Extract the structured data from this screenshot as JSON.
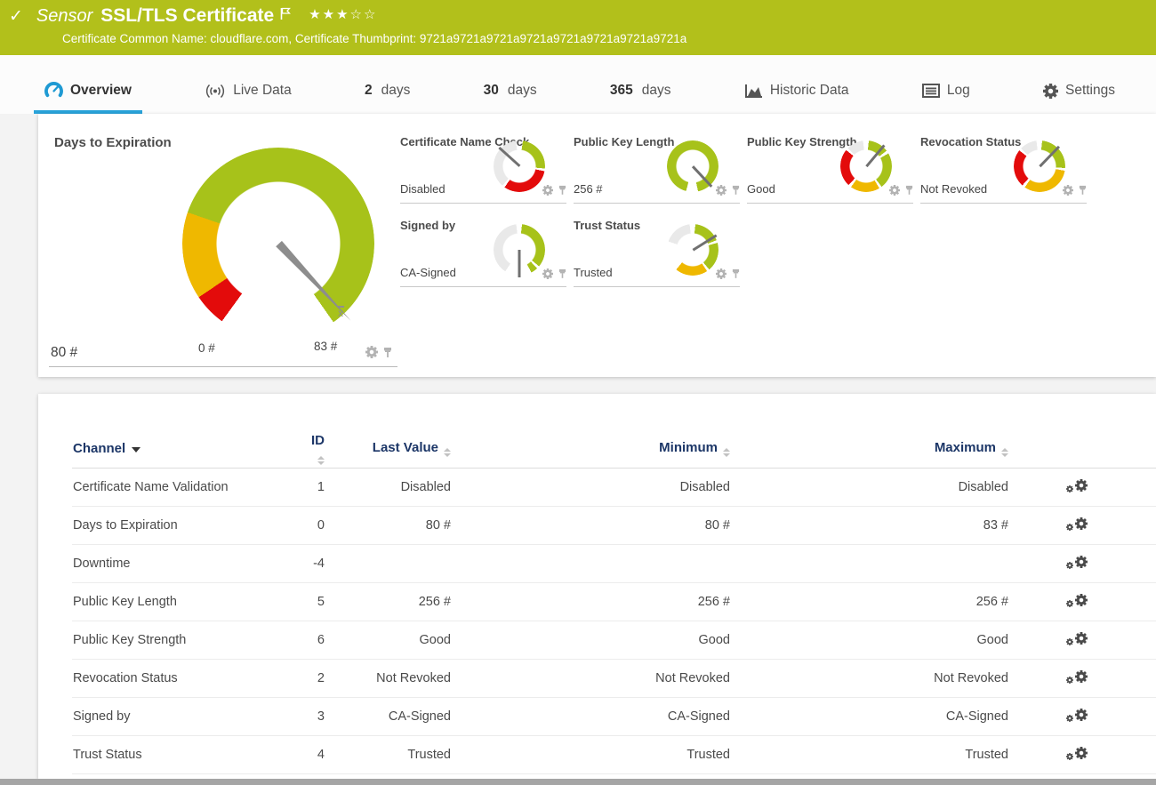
{
  "colors": {
    "header_green": "#b2c01b",
    "accent_blue": "#29a3da",
    "gauge_green": "#a7c21a",
    "gauge_yellow": "#efb800",
    "gauge_red": "#e30b0b",
    "gauge_gray": "#e9e9e9",
    "needle_gray": "#8d8d8d"
  },
  "header": {
    "status_icon": "check",
    "kind": "Sensor",
    "title": "SSL/TLS Certificate",
    "rating": {
      "filled": 3,
      "total": 5
    },
    "subtitle": "Certificate Common Name: cloudflare.com, Certificate Thumbprint: 9721a9721a9721a9721a9721a9721a9721a9721a"
  },
  "tabs": [
    {
      "id": "overview",
      "icon": "gauge-icon",
      "label": "Overview",
      "active": true
    },
    {
      "id": "live-data",
      "icon": "live-icon",
      "label": "Live Data",
      "active": false
    },
    {
      "id": "2-days",
      "num": "2",
      "label": "days",
      "active": false
    },
    {
      "id": "30-days",
      "num": "30",
      "label": "days",
      "active": false
    },
    {
      "id": "365-days",
      "num": "365",
      "label": "days",
      "active": false
    },
    {
      "id": "historic-data",
      "icon": "historic-icon",
      "label": "Historic Data",
      "active": false
    },
    {
      "id": "log",
      "icon": "log-icon",
      "label": "Log",
      "active": false
    },
    {
      "id": "settings",
      "icon": "settings-icon",
      "label": "Settings",
      "active": false
    }
  ],
  "overview": {
    "main_gauge": {
      "title": "Days to Expiration",
      "value": "80 #",
      "min_label": "0 #",
      "max_label": "83 #",
      "mean_marker": "x",
      "needle_deg": 137,
      "segments": [
        {
          "color": "gauge_green",
          "from": 0,
          "to": 145
        },
        {
          "color": "gauge_red",
          "from": 216,
          "to": 236
        },
        {
          "color": "gauge_yellow",
          "from": 236,
          "to": 289
        },
        {
          "color": "gauge_green",
          "from": 289,
          "to": 360
        }
      ]
    },
    "small_gauges": [
      {
        "title": "Certificate Name Check",
        "value": "Disabled",
        "needle_deg": 312,
        "row": 0,
        "col": 0,
        "segments": [
          {
            "color": "gauge_green",
            "from": 8,
            "to": 95
          },
          {
            "color": "gauge_red",
            "from": 101,
            "to": 215
          },
          {
            "color": "gauge_gray",
            "from": 221,
            "to": 352
          }
        ]
      },
      {
        "title": "Public Key Length",
        "value": "256 #",
        "needle_deg": 137,
        "row": 0,
        "col": 1,
        "segments": [
          {
            "color": "gauge_green",
            "from": 0,
            "to": 168
          },
          {
            "color": "gauge_green",
            "from": 195,
            "to": 360
          }
        ]
      },
      {
        "title": "Public Key Strength",
        "value": "Good",
        "needle_deg": 40,
        "row": 0,
        "col": 2,
        "segments": [
          {
            "color": "gauge_green",
            "from": 6,
            "to": 53
          },
          {
            "color": "gauge_green",
            "from": 60,
            "to": 143
          },
          {
            "color": "gauge_yellow",
            "from": 149,
            "to": 216
          },
          {
            "color": "gauge_red",
            "from": 223,
            "to": 309
          },
          {
            "color": "gauge_gray",
            "from": 315,
            "to": 353
          }
        ]
      },
      {
        "title": "Revocation Status",
        "value": "Not Revoked",
        "needle_deg": 44,
        "row": 0,
        "col": 3,
        "segments": [
          {
            "color": "gauge_green",
            "from": 6,
            "to": 94
          },
          {
            "color": "gauge_yellow",
            "from": 100,
            "to": 215
          },
          {
            "color": "gauge_red",
            "from": 222,
            "to": 308
          },
          {
            "color": "gauge_gray",
            "from": 314,
            "to": 353
          }
        ]
      },
      {
        "title": "Signed by",
        "value": "CA-Signed",
        "needle_deg": 180,
        "row": 1,
        "col": 0,
        "segments": [
          {
            "color": "gauge_green",
            "from": 6,
            "to": 130
          },
          {
            "color": "gauge_green",
            "from": 136,
            "to": 152
          },
          {
            "color": "gauge_gray",
            "from": 213,
            "to": 353
          }
        ]
      },
      {
        "title": "Trust Status",
        "value": "Trusted",
        "needle_deg": 58,
        "row": 1,
        "col": 1,
        "segments": [
          {
            "color": "gauge_green",
            "from": 6,
            "to": 68
          },
          {
            "color": "gauge_green",
            "from": 74,
            "to": 140
          },
          {
            "color": "gauge_yellow",
            "from": 146,
            "to": 220
          },
          {
            "color": "gauge_gray",
            "from": 289,
            "to": 353
          }
        ]
      }
    ]
  },
  "table": {
    "headers": [
      {
        "label": "Channel",
        "sorted": true
      },
      {
        "label": "ID",
        "sorted": false
      },
      {
        "label": "Last Value",
        "sorted": false
      },
      {
        "label": "Minimum",
        "sorted": false
      },
      {
        "label": "Maximum",
        "sorted": false
      }
    ],
    "rows": [
      {
        "channel": "Certificate Name Validation",
        "id": "1",
        "last": "Disabled",
        "min": "Disabled",
        "max": "Disabled"
      },
      {
        "channel": "Days to Expiration",
        "id": "0",
        "last": "80 #",
        "min": "80 #",
        "max": "83 #"
      },
      {
        "channel": "Downtime",
        "id": "-4",
        "last": "",
        "min": "",
        "max": ""
      },
      {
        "channel": "Public Key Length",
        "id": "5",
        "last": "256 #",
        "min": "256 #",
        "max": "256 #"
      },
      {
        "channel": "Public Key Strength",
        "id": "6",
        "last": "Good",
        "min": "Good",
        "max": "Good"
      },
      {
        "channel": "Revocation Status",
        "id": "2",
        "last": "Not Revoked",
        "min": "Not Revoked",
        "max": "Not Revoked"
      },
      {
        "channel": "Signed by",
        "id": "3",
        "last": "CA-Signed",
        "min": "CA-Signed",
        "max": "CA-Signed"
      },
      {
        "channel": "Trust Status",
        "id": "4",
        "last": "Trusted",
        "min": "Trusted",
        "max": "Trusted"
      }
    ]
  }
}
